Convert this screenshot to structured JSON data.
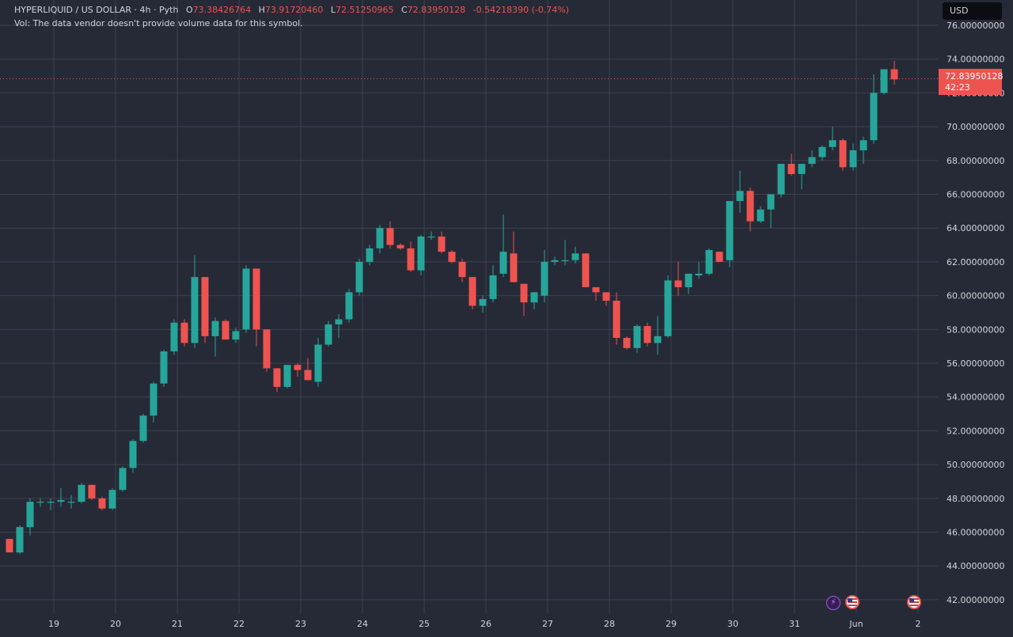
{
  "header": {
    "symbol": "HYPERLIQUID / US DOLLAR · 4h · Pyth",
    "o_label": "O",
    "open": "73.38426764",
    "h_label": "H",
    "high": "73.91720460",
    "l_label": "L",
    "low": "72.51250965",
    "c_label": "C",
    "close": "72.83950128",
    "change": "-0.54218390 (-0.74%)",
    "vol_note": "Vol: The data vendor doesn't provide volume data for this symbol."
  },
  "currency": "USD",
  "last_price": {
    "price": "72.83950128",
    "countdown": "42:23"
  },
  "colors": {
    "background": "#262a36",
    "grid": "#3e4250",
    "up": "#26a69a",
    "down": "#ef5350",
    "text": "#d1d4dc"
  },
  "events": [
    "bolt-icon",
    "us-flag-icon",
    "us-flag-icon"
  ],
  "chart_data": {
    "type": "candlestick",
    "timeframe": "4h",
    "ylim": [
      41.2,
      77.5
    ],
    "y_ticks": [
      "42.00000000",
      "44.00000000",
      "46.00000000",
      "48.00000000",
      "50.00000000",
      "52.00000000",
      "54.00000000",
      "56.00000000",
      "58.00000000",
      "60.00000000",
      "62.00000000",
      "64.00000000",
      "66.00000000",
      "68.00000000",
      "70.00000000",
      "72.00000000",
      "74.00000000",
      "76.00000000"
    ],
    "x_ticks": [
      {
        "label": "19",
        "bar": 2
      },
      {
        "label": "20",
        "bar": 8
      },
      {
        "label": "21",
        "bar": 14
      },
      {
        "label": "22",
        "bar": 20
      },
      {
        "label": "23",
        "bar": 26
      },
      {
        "label": "24",
        "bar": 32
      },
      {
        "label": "25",
        "bar": 38
      },
      {
        "label": "26",
        "bar": 44
      },
      {
        "label": "27",
        "bar": 50
      },
      {
        "label": "28",
        "bar": 56
      },
      {
        "label": "29",
        "bar": 62
      },
      {
        "label": "30",
        "bar": 68
      },
      {
        "label": "31",
        "bar": 74
      },
      {
        "label": "Jun",
        "bar": 80
      },
      {
        "label": "2",
        "bar": 86
      }
    ],
    "last_price": 72.8395,
    "candles": [
      [
        45.6,
        45.6,
        44.8,
        44.8
      ],
      [
        44.8,
        46.4,
        44.7,
        46.3
      ],
      [
        46.3,
        48.0,
        45.8,
        47.8
      ],
      [
        47.8,
        48.0,
        47.5,
        47.8
      ],
      [
        47.8,
        48.0,
        47.3,
        47.8
      ],
      [
        47.8,
        48.6,
        47.5,
        47.9
      ],
      [
        47.8,
        48.2,
        47.4,
        47.8
      ],
      [
        47.8,
        48.9,
        47.7,
        48.8
      ],
      [
        48.8,
        48.8,
        47.9,
        48.0
      ],
      [
        48.0,
        48.1,
        47.3,
        47.4
      ],
      [
        47.4,
        48.6,
        47.3,
        48.5
      ],
      [
        48.5,
        49.9,
        48.4,
        49.8
      ],
      [
        49.8,
        51.5,
        49.5,
        51.4
      ],
      [
        51.4,
        53.0,
        51.3,
        52.9
      ],
      [
        52.9,
        54.9,
        52.5,
        54.8
      ],
      [
        54.8,
        56.8,
        54.6,
        56.7
      ],
      [
        56.7,
        58.6,
        56.5,
        58.4
      ],
      [
        58.4,
        58.6,
        57.0,
        57.2
      ],
      [
        57.2,
        62.4,
        56.9,
        61.1
      ],
      [
        61.1,
        61.1,
        57.2,
        57.6
      ],
      [
        57.6,
        58.7,
        56.4,
        58.5
      ],
      [
        58.5,
        58.6,
        57.5,
        57.4
      ],
      [
        57.4,
        58.1,
        57.2,
        57.9
      ],
      [
        58.0,
        61.8,
        57.8,
        61.6
      ],
      [
        61.6,
        61.6,
        57.0,
        58.0
      ],
      [
        58.0,
        58.0,
        55.5,
        55.7
      ],
      [
        55.7,
        55.7,
        54.3,
        54.6
      ],
      [
        54.6,
        55.8,
        54.5,
        55.9
      ],
      [
        55.9,
        56.0,
        55.2,
        55.6
      ],
      [
        55.6,
        56.3,
        55.0,
        55.0
      ],
      [
        54.9,
        57.5,
        54.6,
        57.1
      ],
      [
        57.1,
        58.5,
        57.0,
        58.3
      ],
      [
        58.3,
        58.9,
        57.5,
        58.6
      ],
      [
        58.6,
        60.4,
        58.4,
        60.2
      ],
      [
        60.2,
        62.2,
        60.0,
        62.0
      ],
      [
        62.0,
        63.0,
        61.8,
        62.8
      ],
      [
        62.8,
        64.2,
        62.5,
        64.0
      ],
      [
        64.0,
        64.4,
        62.8,
        63.0
      ],
      [
        63.0,
        63.1,
        62.7,
        62.8
      ],
      [
        62.8,
        63.2,
        61.4,
        61.5
      ],
      [
        61.5,
        63.6,
        61.2,
        63.5
      ],
      [
        63.5,
        63.8,
        63.3,
        63.5
      ],
      [
        63.5,
        63.8,
        62.5,
        62.6
      ],
      [
        62.6,
        62.7,
        61.9,
        62.0
      ],
      [
        62.0,
        62.2,
        60.8,
        61.1
      ],
      [
        61.1,
        61.1,
        59.2,
        59.4
      ],
      [
        59.4,
        60.0,
        59.0,
        59.8
      ],
      [
        59.8,
        61.8,
        59.6,
        61.2
      ],
      [
        61.3,
        64.8,
        61.1,
        62.6
      ],
      [
        62.5,
        63.8,
        60.9,
        60.8
      ],
      [
        60.7,
        60.7,
        58.8,
        59.6
      ],
      [
        59.6,
        60.2,
        59.2,
        60.2
      ],
      [
        60.0,
        62.7,
        59.6,
        62.0
      ],
      [
        62.0,
        62.3,
        61.8,
        62.1
      ],
      [
        62.1,
        63.3,
        61.8,
        62.1
      ],
      [
        62.1,
        62.9,
        61.9,
        62.5
      ],
      [
        62.5,
        62.5,
        60.5,
        60.5
      ],
      [
        60.5,
        60.5,
        59.7,
        60.2
      ],
      [
        60.2,
        60.2,
        59.4,
        59.7
      ],
      [
        59.7,
        60.2,
        57.1,
        57.5
      ],
      [
        57.5,
        57.6,
        56.8,
        56.9
      ],
      [
        56.9,
        58.3,
        56.6,
        58.2
      ],
      [
        58.2,
        58.4,
        57.0,
        57.2
      ],
      [
        57.2,
        58.8,
        56.5,
        57.6
      ],
      [
        57.6,
        61.2,
        57.5,
        60.9
      ],
      [
        60.9,
        62.0,
        60.0,
        60.5
      ],
      [
        60.5,
        61.2,
        60.1,
        61.3
      ],
      [
        61.2,
        62.0,
        61.0,
        61.3
      ],
      [
        61.3,
        62.8,
        61.2,
        62.7
      ],
      [
        62.6,
        62.6,
        62.1,
        62.0
      ],
      [
        62.1,
        65.4,
        61.7,
        65.6
      ],
      [
        65.6,
        67.4,
        64.9,
        66.2
      ],
      [
        66.2,
        66.4,
        63.8,
        64.4
      ],
      [
        64.4,
        65.3,
        64.3,
        65.1
      ],
      [
        65.1,
        66.0,
        64.0,
        66.0
      ],
      [
        66.0,
        67.7,
        65.8,
        67.8
      ],
      [
        67.8,
        68.4,
        67.1,
        67.2
      ],
      [
        67.2,
        67.8,
        66.3,
        67.8
      ],
      [
        67.8,
        68.6,
        67.6,
        68.2
      ],
      [
        68.2,
        68.9,
        68.0,
        68.8
      ],
      [
        68.8,
        70.0,
        68.6,
        69.2
      ],
      [
        69.2,
        69.3,
        67.4,
        67.6
      ],
      [
        67.6,
        69.0,
        67.4,
        68.6
      ],
      [
        68.6,
        69.4,
        67.8,
        69.2
      ],
      [
        69.2,
        73.1,
        69.0,
        72.0
      ],
      [
        72.0,
        73.4,
        71.9,
        73.4
      ],
      [
        73.4,
        73.9,
        72.5,
        72.8
      ]
    ]
  }
}
